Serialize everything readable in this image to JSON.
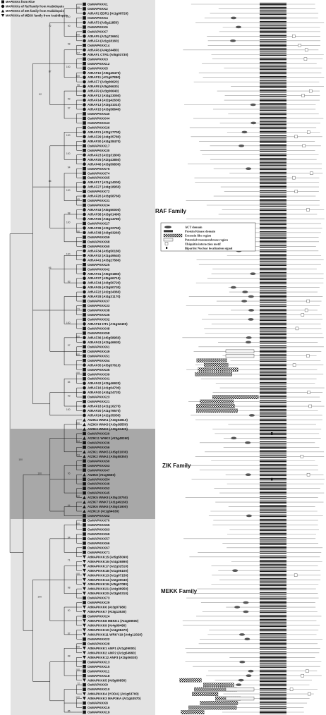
{
  "key": [
    {
      "shape": "square",
      "label": "MAPKKKs from Rice"
    },
    {
      "shape": "circle",
      "label": "MAPKKKs of Raf family from Arabidopsis"
    },
    {
      "shape": "triangle-up",
      "label": "MAPKKKs of ZIK family from Arabidopsis"
    },
    {
      "shape": "triangle-down",
      "label": "MAPKKKs of MEKK family from Arabidopsis"
    }
  ],
  "families": [
    {
      "label": "RAF Family",
      "fill": "#e3e3e3"
    },
    {
      "label": "ZIK Family",
      "fill": "#a8a8a8"
    },
    {
      "label": "MEKK Family",
      "fill": "#e3e3e3"
    }
  ],
  "domain_legend": [
    {
      "label": "ACT domain",
      "swatch": "oval"
    },
    {
      "label": "Protein Kinase domain",
      "swatch": "stripes"
    },
    {
      "label": "Extensin like region",
      "swatch": "checker"
    },
    {
      "label": "Potential transmembrane region",
      "swatch": "light"
    },
    {
      "label": "Ubiquitin interaction motif",
      "swatch": "square"
    },
    {
      "label": "Bipartite Nuclear localization signal",
      "swatch": "dot"
    }
  ],
  "leaves": [
    {
      "label": "OsMAPKKK1",
      "shape": "square"
    },
    {
      "label": "OsMAPKKK2",
      "shape": "square"
    },
    {
      "label": "AtRAF2 EDR1 (At1g08720)",
      "shape": "circle"
    },
    {
      "label": "OsMAPKKK4",
      "shape": "square"
    },
    {
      "label": "AtRAF3 (At5g11850)",
      "shape": "circle"
    },
    {
      "label": "OsMAPKKK6",
      "shape": "square"
    },
    {
      "label": "OsMAPKKK7",
      "shape": "square"
    },
    {
      "label": "AtRAF5 (At1g73660)",
      "shape": "circle"
    },
    {
      "label": "AtRAF4 (At1g18160)",
      "shape": "circle"
    },
    {
      "label": "OsMAPKKK14",
      "shape": "square"
    },
    {
      "label": "AtRAF6 (At4g24480)",
      "shape": "circle"
    },
    {
      "label": "AtRAF1 CTR1 (At5g03730)",
      "shape": "circle"
    },
    {
      "label": "OsMAPKKK3",
      "shape": "square"
    },
    {
      "label": "OsMAPKKK12",
      "shape": "square"
    },
    {
      "label": "OsMAPKKK5",
      "shape": "square"
    },
    {
      "label": "AtRAF10 (At5g49470)",
      "shape": "circle"
    },
    {
      "label": "AtRAF11 (At1g67890)",
      "shape": "circle"
    },
    {
      "label": "AtRAF7 (At3g06620)",
      "shape": "circle"
    },
    {
      "label": "AtRAF8 (At5g06630)",
      "shape": "circle"
    },
    {
      "label": "AtRAF9 (At3g06640)",
      "shape": "circle"
    },
    {
      "label": "AtRAF12 (At4g23050)",
      "shape": "circle"
    },
    {
      "label": "AtRAF14 (At2g42630)",
      "shape": "circle"
    },
    {
      "label": "AtRAF13 (At3g31010)",
      "shape": "circle"
    },
    {
      "label": "AtRAF15 (At3g58640)",
      "shape": "circle"
    },
    {
      "label": "OsMAPKKK40",
      "shape": "square"
    },
    {
      "label": "OsMAPKKK44",
      "shape": "square"
    },
    {
      "label": "OsMAPKKK43",
      "shape": "square"
    },
    {
      "label": "OsMAPKKK26",
      "shape": "square"
    },
    {
      "label": "AtRAF21 (At2g17700)",
      "shape": "circle"
    },
    {
      "label": "AtRAF29 (At4g35780)",
      "shape": "circle"
    },
    {
      "label": "AtRAF30 (At4g38470)",
      "shape": "circle"
    },
    {
      "label": "OsMAPKKK17",
      "shape": "square"
    },
    {
      "label": "OsMAPKKK30",
      "shape": "square"
    },
    {
      "label": "AtRAF23 (At2g31800)",
      "shape": "circle"
    },
    {
      "label": "AtRAF25 (At2g43850)",
      "shape": "circle"
    },
    {
      "label": "AtRAF46 (At3g59830)",
      "shape": "circle"
    },
    {
      "label": "OsMAPKKK75",
      "shape": "square"
    },
    {
      "label": "OsMAPKKK74",
      "shape": "square"
    },
    {
      "label": "OsMAPKKK65",
      "shape": "square"
    },
    {
      "label": "AtRAF17 (At1g14000)",
      "shape": "circle"
    },
    {
      "label": "AtRAF27 (At4g18950)",
      "shape": "circle"
    },
    {
      "label": "OsMAPKKK72",
      "shape": "square"
    },
    {
      "label": "AtRAF26 (At3g58760)",
      "shape": "circle"
    },
    {
      "label": "OsMAPKKK31",
      "shape": "square"
    },
    {
      "label": "OsMAPKKK34",
      "shape": "square"
    },
    {
      "label": "AtRAF33 (At5g50000)",
      "shape": "circle"
    },
    {
      "label": "AtRAF38 (At3g01490)",
      "shape": "circle"
    },
    {
      "label": "AtRAF26 (At4g14780)",
      "shape": "circle"
    },
    {
      "label": "OsMAPKKK27",
      "shape": "square"
    },
    {
      "label": "AtRAF39 (At3g22750)",
      "shape": "circle"
    },
    {
      "label": "AtRAF48 (At3g63260)",
      "shape": "circle"
    },
    {
      "label": "OsMAPKKK59",
      "shape": "square"
    },
    {
      "label": "OsMAPKKK68",
      "shape": "square"
    },
    {
      "label": "OsMAPKKK60",
      "shape": "square"
    },
    {
      "label": "AtRAF34 (At5g50180)",
      "shape": "circle"
    },
    {
      "label": "AtRAF32 (At1g49540)",
      "shape": "circle"
    },
    {
      "label": "AtRAF41 (At3g27560)",
      "shape": "circle"
    },
    {
      "label": "OsMAPKKK25",
      "shape": "square"
    },
    {
      "label": "OsMAPKKK42",
      "shape": "square"
    },
    {
      "label": "AtRAF31 (At5g01850)",
      "shape": "circle"
    },
    {
      "label": "AtRAF37 (At5g66710)",
      "shape": "circle"
    },
    {
      "label": "AtRAF44 (At3g50720)",
      "shape": "circle"
    },
    {
      "label": "AtRAF45 (At3g50730)",
      "shape": "circle"
    },
    {
      "label": "AtRAF22 (At2g24360)",
      "shape": "circle"
    },
    {
      "label": "AtRAF28 (At4g31170)",
      "shape": "circle"
    },
    {
      "label": "OsMAPKKK37",
      "shape": "square"
    },
    {
      "label": "OsMAPKKK33",
      "shape": "square"
    },
    {
      "label": "OsMAPKKK38",
      "shape": "square"
    },
    {
      "label": "OsMAPKKK36",
      "shape": "square"
    },
    {
      "label": "OsMAPKKK32",
      "shape": "square"
    },
    {
      "label": "AtRAF19 HT1 (At1g62400)",
      "shape": "circle"
    },
    {
      "label": "OsMAPKKK48",
      "shape": "square"
    },
    {
      "label": "OsMAPKKK58",
      "shape": "square"
    },
    {
      "label": "AtRAF36 (At5g58950)",
      "shape": "circle"
    },
    {
      "label": "AtRAF43 (At3g46930)",
      "shape": "circle"
    },
    {
      "label": "OsMAPKKK61",
      "shape": "square"
    },
    {
      "label": "OsMAPKKK49",
      "shape": "square"
    },
    {
      "label": "OsMAPKKK51",
      "shape": "square"
    },
    {
      "label": "OsMAPKKK54",
      "shape": "square"
    },
    {
      "label": "AtRAF35 (At5g57610)",
      "shape": "circle"
    },
    {
      "label": "OsMAPKKK35",
      "shape": "square"
    },
    {
      "label": "OsMAPKKK39",
      "shape": "square"
    },
    {
      "label": "OsMAPKKK41",
      "shape": "square"
    },
    {
      "label": "AtRAF42 (At3g46920)",
      "shape": "circle"
    },
    {
      "label": "AtRAF16 (At1g04700)",
      "shape": "circle"
    },
    {
      "label": "AtRAF40 (At4g24720)",
      "shape": "circle"
    },
    {
      "label": "OsMAPKKK23",
      "shape": "square"
    },
    {
      "label": "OsMAPKKK21",
      "shape": "square"
    },
    {
      "label": "AtRAF18 (At1g16270)",
      "shape": "circle"
    },
    {
      "label": "AtRAF20 (At1g79570)",
      "shape": "circle"
    },
    {
      "label": "AtRAF24 (At2g35050)",
      "shape": "circle"
    },
    {
      "label": "AtZIK4 WNK1 (At3g04910)",
      "shape": "triangle-up"
    },
    {
      "label": "AtZIK9 WNK9 (At3g38550)",
      "shape": "triangle-up"
    },
    {
      "label": "AtZIK3 WNK2 (At3g22420)",
      "shape": "triangle-up"
    },
    {
      "label": "OsMAPKKK20",
      "shape": "square"
    },
    {
      "label": "AtZIK11 WNK3 (At3g48260)",
      "shape": "triangle-up"
    },
    {
      "label": "OsMAPKKK36",
      "shape": "square"
    },
    {
      "label": "OsMAPKKK56",
      "shape": "square"
    },
    {
      "label": "AtZIK1 WNK5 (At5g51030)",
      "shape": "triangle-up"
    },
    {
      "label": "AtZIK2 WNK4 (At5g58350)",
      "shape": "triangle-up"
    },
    {
      "label": "OsMAPKKK50",
      "shape": "square"
    },
    {
      "label": "OsMAPKKK53",
      "shape": "square"
    },
    {
      "label": "OsMAPKKK47",
      "shape": "square"
    },
    {
      "label": "AtZIK8 (At1g5560)",
      "shape": "triangle-up"
    },
    {
      "label": "OsMAPKKK54",
      "shape": "square"
    },
    {
      "label": "OsMAPKKK46",
      "shape": "square"
    },
    {
      "label": "OsMAPKKK52",
      "shape": "square"
    },
    {
      "label": "OsMAPKKK45",
      "shape": "square"
    },
    {
      "label": "AtZIK5 WNK8 (At5g18750)",
      "shape": "triangle-up"
    },
    {
      "label": "AtZIK7 WNK7 (At1g49160)",
      "shape": "triangle-up"
    },
    {
      "label": "AtZIK6 WNK6 (At5g01900)",
      "shape": "triangle-up"
    },
    {
      "label": "AtZIK10 (At1g64630)",
      "shape": "triangle-up"
    },
    {
      "label": "OsMAPKKK62",
      "shape": "square"
    },
    {
      "label": "OsMAPKKK70",
      "shape": "square"
    },
    {
      "label": "OsMAPKKK55",
      "shape": "square"
    },
    {
      "label": "OsMAPKKK63",
      "shape": "square"
    },
    {
      "label": "OsMAPKKK69",
      "shape": "square"
    },
    {
      "label": "OsMAPKKK57",
      "shape": "square"
    },
    {
      "label": "OsMAPKKK66",
      "shape": "square"
    },
    {
      "label": "OsMAPKKK67",
      "shape": "square"
    },
    {
      "label": "OsMAPKKK71",
      "shape": "square"
    },
    {
      "label": "AtMAPKKK15 (At5g55090)",
      "shape": "triangle-down"
    },
    {
      "label": "AtMAPKKK16 (At4g26890)",
      "shape": "triangle-down"
    },
    {
      "label": "AtMAPKKK17 (At2g32510)",
      "shape": "triangle-down"
    },
    {
      "label": "AtMAPKKK18 (At1g05100)",
      "shape": "triangle-down"
    },
    {
      "label": "AtMAPKKK13 (At1g07150)",
      "shape": "triangle-down"
    },
    {
      "label": "AtMAPKKK14 (At2g30040)",
      "shape": "triangle-down"
    },
    {
      "label": "AtMAPKKK19 (At5g67080)",
      "shape": "triangle-down"
    },
    {
      "label": "AtMAPKKK21 (At4g36950)",
      "shape": "triangle-down"
    },
    {
      "label": "AtMAPKKK20 (At3g50310)",
      "shape": "triangle-down"
    },
    {
      "label": "OsMAPKKK73",
      "shape": "square"
    },
    {
      "label": "OsMAPKKK29",
      "shape": "square"
    },
    {
      "label": "AtMAPKKK6 (At3g07980)",
      "shape": "triangle-down"
    },
    {
      "label": "AtMAPKKK7 (At3g13530)",
      "shape": "triangle-down"
    },
    {
      "label": "OsMAPKKK24",
      "shape": "square"
    },
    {
      "label": "AtMAPKKK8 MEKK1 (At4g08500)",
      "shape": "triangle-down"
    },
    {
      "label": "AtMAPKKK9 (At4g08480)",
      "shape": "triangle-down"
    },
    {
      "label": "AtMAPKKK10 (At4g08470)",
      "shape": "triangle-down"
    },
    {
      "label": "AtMAPKKK11 WRKY19 (At4g12020)",
      "shape": "triangle-down"
    },
    {
      "label": "OsMAPKKK22",
      "shape": "square"
    },
    {
      "label": "OsMAPKKK28",
      "shape": "square"
    },
    {
      "label": "AtMAPKKK1 ANP1 (At1g09000)",
      "shape": "triangle-down"
    },
    {
      "label": "AtMAPKKK2 ANP2 (At1g54960)",
      "shape": "triangle-down"
    },
    {
      "label": "AtMAPKKK12 ANP3 (At3g06030)",
      "shape": "triangle-down"
    },
    {
      "label": "OsMAPKKK13",
      "shape": "square"
    },
    {
      "label": "OsMAPKKK15",
      "shape": "square"
    },
    {
      "label": "OsMAPKKK11",
      "shape": "square"
    },
    {
      "label": "OsMAPKKK18",
      "shape": "square"
    },
    {
      "label": "AtMAPKKK5 (At5g66850)",
      "shape": "triangle-down"
    },
    {
      "label": "OsMAPKKK9",
      "shape": "square"
    },
    {
      "label": "OsMAPKKK10",
      "shape": "square"
    },
    {
      "label": "AtMAPKKK4 (YODA) (At1g63700)",
      "shape": "triangle-down"
    },
    {
      "label": "AtMAPKKK3 MAP3KA (At1g53570)",
      "shape": "triangle-down"
    },
    {
      "label": "OsMAPKKK8",
      "shape": "square"
    },
    {
      "label": "OsMAPKKK16",
      "shape": "square"
    },
    {
      "label": "OsMAPKKK19",
      "shape": "square"
    }
  ],
  "bootstrap": [
    {
      "leaf": 1,
      "depth": 8,
      "value": "99"
    },
    {
      "leaf": 3,
      "depth": 7,
      "value": "100"
    },
    {
      "leaf": 5,
      "depth": 7,
      "value": "90"
    },
    {
      "leaf": 7,
      "depth": 8,
      "value": "100"
    },
    {
      "leaf": 9,
      "depth": 7,
      "value": "98"
    },
    {
      "leaf": 11,
      "depth": 8,
      "value": "97"
    },
    {
      "leaf": 14,
      "depth": 7,
      "value": "100"
    },
    {
      "leaf": 5,
      "depth": 5,
      "value": "72"
    },
    {
      "leaf": 16,
      "depth": 8,
      "value": "100"
    },
    {
      "leaf": 18,
      "depth": 8,
      "value": "95"
    },
    {
      "leaf": 21,
      "depth": 7,
      "value": "99"
    },
    {
      "leaf": 23,
      "depth": 7,
      "value": "97"
    },
    {
      "leaf": 15,
      "depth": 5,
      "value": "67"
    },
    {
      "leaf": 20,
      "depth": 4,
      "value": "92"
    },
    {
      "leaf": 29,
      "depth": 7,
      "value": "100"
    },
    {
      "leaf": 33,
      "depth": 7,
      "value": "100"
    },
    {
      "leaf": 36,
      "depth": 7,
      "value": "94"
    },
    {
      "leaf": 41,
      "depth": 7,
      "value": "100"
    },
    {
      "leaf": 43,
      "depth": 8,
      "value": "65"
    },
    {
      "leaf": 46,
      "depth": 7,
      "value": "98"
    },
    {
      "leaf": 48,
      "depth": 7,
      "value": "100"
    },
    {
      "leaf": 50,
      "depth": 8,
      "value": "86"
    },
    {
      "leaf": 39,
      "depth": 5,
      "value": "86"
    },
    {
      "leaf": 55,
      "depth": 7,
      "value": "100"
    },
    {
      "leaf": 61,
      "depth": 7,
      "value": "83"
    },
    {
      "leaf": 58,
      "depth": 5,
      "value": "65"
    },
    {
      "leaf": 67,
      "depth": 8,
      "value": "71"
    },
    {
      "leaf": 70,
      "depth": 7,
      "value": "100"
    },
    {
      "leaf": 73,
      "depth": 8,
      "value": "100"
    },
    {
      "leaf": 75,
      "depth": 7,
      "value": "97"
    },
    {
      "leaf": 77,
      "depth": 8,
      "value": "100"
    },
    {
      "leaf": 81,
      "depth": 8,
      "value": "100"
    },
    {
      "leaf": 83,
      "depth": 7,
      "value": "84"
    },
    {
      "leaf": 86,
      "depth": 7,
      "value": "93"
    },
    {
      "leaf": 89,
      "depth": 7,
      "value": "100"
    },
    {
      "leaf": 92,
      "depth": 8,
      "value": "100"
    },
    {
      "leaf": 96,
      "depth": 8,
      "value": "84"
    },
    {
      "leaf": 99,
      "depth": 8,
      "value": "93"
    },
    {
      "leaf": 103,
      "depth": 7,
      "value": "96"
    },
    {
      "leaf": 108,
      "depth": 8,
      "value": "100"
    },
    {
      "leaf": 110,
      "depth": 7,
      "value": "64"
    },
    {
      "leaf": 103,
      "depth": 4,
      "value": "100"
    },
    {
      "leaf": 114,
      "depth": 8,
      "value": "100"
    },
    {
      "leaf": 117,
      "depth": 7,
      "value": "94"
    },
    {
      "leaf": 122,
      "depth": 7,
      "value": "71"
    },
    {
      "leaf": 125,
      "depth": 8,
      "value": "100"
    },
    {
      "leaf": 128,
      "depth": 7,
      "value": "98"
    },
    {
      "leaf": 133,
      "depth": 7,
      "value": "90"
    },
    {
      "leaf": 138,
      "depth": 7,
      "value": "97"
    },
    {
      "leaf": 141,
      "depth": 8,
      "value": "100"
    },
    {
      "leaf": 143,
      "depth": 7,
      "value": "88"
    },
    {
      "leaf": 146,
      "depth": 8,
      "value": "100"
    },
    {
      "leaf": 149,
      "depth": 8,
      "value": "72"
    },
    {
      "leaf": 152,
      "depth": 8,
      "value": "100"
    },
    {
      "leaf": 155,
      "depth": 7,
      "value": "85"
    },
    {
      "leaf": 158,
      "depth": 7,
      "value": "97"
    },
    {
      "leaf": 130,
      "depth": 4,
      "value": "100"
    },
    {
      "leaf": 100,
      "depth": 2,
      "value": "100"
    }
  ]
}
